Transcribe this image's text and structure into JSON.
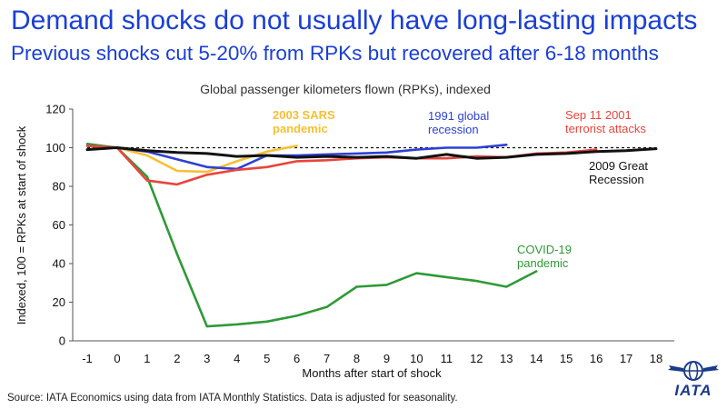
{
  "header": {
    "title": "Demand shocks do not usually have long-lasting impacts",
    "subtitle": "Previous shocks cut 5-20% from RPKs but recovered after 6-18 months"
  },
  "chart_data": {
    "type": "line",
    "title": "Global passenger kilometers flown (RPKs), indexed",
    "xlabel": "Months after start of shock",
    "ylabel": "Indexed, 100 = RPKs at start of shock",
    "xlim": [
      -1,
      18
    ],
    "ylim": [
      0,
      120
    ],
    "x_ticks": [
      -1,
      0,
      1,
      2,
      3,
      4,
      5,
      6,
      7,
      8,
      9,
      10,
      11,
      12,
      13,
      14,
      15,
      16,
      17,
      18
    ],
    "y_ticks": [
      0,
      20,
      40,
      60,
      80,
      100,
      120
    ],
    "grid": false,
    "reference_line": {
      "y": 100,
      "style": "dashed"
    },
    "series": [
      {
        "name": "2003 SARS pandemic",
        "label_lines": [
          "2003 SARS",
          "pandemic"
        ],
        "color": "#f5c033",
        "x": [
          -1,
          0,
          1,
          2,
          3,
          4,
          5,
          6
        ],
        "y": [
          101,
          100,
          96,
          88,
          87.5,
          93,
          98,
          101
        ]
      },
      {
        "name": "1991 global recession",
        "label_lines": [
          "1991 global",
          "recession"
        ],
        "color": "#2e40d4",
        "x": [
          -1,
          0,
          1,
          2,
          3,
          4,
          5,
          6,
          7,
          8,
          9,
          10,
          11,
          12,
          13
        ],
        "y": [
          101,
          100,
          98,
          94,
          90,
          89,
          96,
          96,
          96.5,
          97,
          97.5,
          99,
          100,
          100,
          101.5
        ]
      },
      {
        "name": "Sep 11 2001 terrorist attacks",
        "label_lines": [
          "Sep 11 2001",
          "terrorist attacks"
        ],
        "color": "#e8453c",
        "x": [
          -1,
          0,
          1,
          2,
          3,
          4,
          5,
          6,
          7,
          8,
          9,
          10,
          11,
          12,
          13,
          14,
          15,
          16
        ],
        "y": [
          101,
          100,
          83,
          81,
          86,
          88.5,
          90,
          93,
          93.5,
          94.5,
          95,
          94.5,
          94.5,
          95.5,
          95,
          97,
          97.5,
          99
        ]
      },
      {
        "name": "2009 Great Recession",
        "label_lines": [
          "2009 Great",
          "Recession"
        ],
        "color": "#111111",
        "x": [
          -1,
          0,
          1,
          2,
          3,
          4,
          5,
          6,
          7,
          8,
          9,
          10,
          11,
          12,
          13,
          14,
          15,
          16,
          17,
          18
        ],
        "y": [
          99,
          100,
          98.5,
          97.5,
          97,
          95.5,
          96,
          95,
          95.5,
          95,
          95.5,
          94.5,
          96.5,
          94.5,
          95,
          96.5,
          97,
          98,
          98.5,
          99.5
        ]
      },
      {
        "name": "COVID-19 pandemic",
        "label_lines": [
          "COVID-19",
          "pandemic"
        ],
        "color": "#2e9a36",
        "x": [
          -1,
          0,
          1,
          2,
          3,
          4,
          5,
          6,
          7,
          8,
          9,
          10,
          11,
          12,
          13,
          14
        ],
        "y": [
          102,
          100,
          85,
          45,
          7.5,
          8.5,
          10,
          13,
          17.5,
          28,
          29,
          35,
          33,
          31,
          28,
          36
        ]
      }
    ]
  },
  "footer": {
    "source": "Source: IATA Economics using data from IATA Monthly Statistics. Data is adjusted for seasonality."
  },
  "logo": {
    "text": "IATA",
    "color": "#1a3a8a"
  }
}
